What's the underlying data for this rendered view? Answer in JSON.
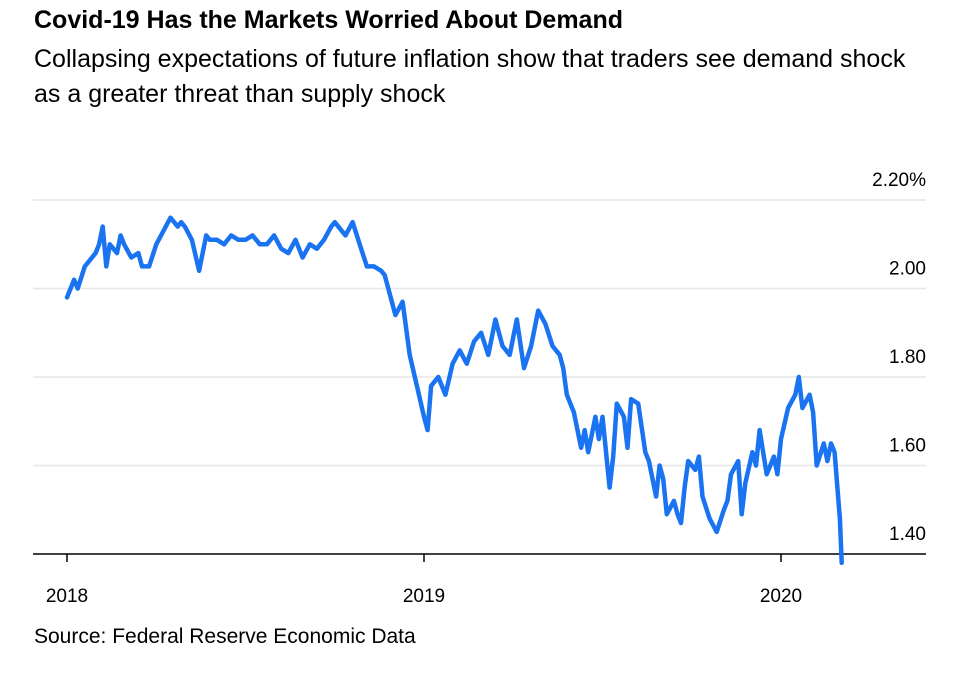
{
  "title": "Covid-19 Has the Markets Worried About Demand",
  "subtitle": "Collapsing expectations of future inflation show that traders see demand shock as a greater threat than supply shock",
  "source": "Source: Federal Reserve Economic Data",
  "colors": {
    "line": "#1a73f0",
    "grid": "#e6e6e6",
    "axis": "#000000"
  },
  "chart_data": {
    "type": "line",
    "title": "Covid-19 Has the Markets Worried About Demand",
    "subtitle": "Collapsing expectations of future inflation show that traders see demand shock as a greater threat than supply shock",
    "xlabel": "",
    "ylabel": "",
    "ylim": [
      1.38,
      2.2
    ],
    "xlim": [
      2017.9,
      2020.4
    ],
    "grid": true,
    "y_ticks": [
      {
        "value": 2.2,
        "label": "2.20%"
      },
      {
        "value": 2.0,
        "label": "2.00"
      },
      {
        "value": 1.8,
        "label": "1.80"
      },
      {
        "value": 1.6,
        "label": "1.60"
      },
      {
        "value": 1.4,
        "label": "1.40"
      }
    ],
    "x_ticks": [
      {
        "value": 2018,
        "label": "2018"
      },
      {
        "value": 2019,
        "label": "2019"
      },
      {
        "value": 2020,
        "label": "2020"
      }
    ],
    "series": [
      {
        "x": [
          2018.0,
          2018.01,
          2018.02,
          2018.03,
          2018.05,
          2018.06,
          2018.08,
          2018.09,
          2018.1,
          2018.11,
          2018.12,
          2018.14,
          2018.15,
          2018.16,
          2018.18,
          2018.2,
          2018.21,
          2018.23,
          2018.25,
          2018.27,
          2018.29,
          2018.3,
          2018.31,
          2018.32,
          2018.33,
          2018.35,
          2018.37,
          2018.39,
          2018.4,
          2018.42,
          2018.44,
          2018.46,
          2018.48,
          2018.5,
          2018.52,
          2018.54,
          2018.56,
          2018.58,
          2018.6,
          2018.62,
          2018.64,
          2018.66,
          2018.68,
          2018.7,
          2018.72,
          2018.74,
          2018.75,
          2018.76,
          2018.78,
          2018.8,
          2018.82,
          2018.84,
          2018.86,
          2018.88,
          2018.89,
          2018.9,
          2018.92,
          2018.94,
          2018.96,
          2018.98,
          2019.0,
          2019.01,
          2019.02,
          2019.04,
          2019.06,
          2019.08,
          2019.1,
          2019.12,
          2019.14,
          2019.16,
          2019.18,
          2019.2,
          2019.22,
          2019.24,
          2019.26,
          2019.28,
          2019.3,
          2019.32,
          2019.34,
          2019.36,
          2019.38,
          2019.39,
          2019.4,
          2019.42,
          2019.44,
          2019.45,
          2019.46,
          2019.48,
          2019.49,
          2019.5,
          2019.52,
          2019.53,
          2019.54,
          2019.56,
          2019.57,
          2019.58,
          2019.6,
          2019.62,
          2019.63,
          2019.64,
          2019.65,
          2019.66,
          2019.67,
          2019.68,
          2019.7,
          2019.71,
          2019.72,
          2019.73,
          2019.74,
          2019.76,
          2019.77,
          2019.78,
          2019.8,
          2019.82,
          2019.84,
          2019.85,
          2019.86,
          2019.88,
          2019.89,
          2019.9,
          2019.92,
          2019.93,
          2019.94,
          2019.96,
          2019.98,
          2019.99,
          2020.0,
          2020.02,
          2020.04,
          2020.05,
          2020.06,
          2020.08,
          2020.09,
          2020.1,
          2020.12,
          2020.13,
          2020.14,
          2020.15,
          2020.16,
          2020.165,
          2020.17
        ],
        "y": [
          1.98,
          2.0,
          2.02,
          2.0,
          2.05,
          2.06,
          2.08,
          2.1,
          2.14,
          2.05,
          2.1,
          2.08,
          2.12,
          2.1,
          2.07,
          2.08,
          2.05,
          2.05,
          2.1,
          2.13,
          2.16,
          2.15,
          2.14,
          2.15,
          2.14,
          2.11,
          2.04,
          2.12,
          2.11,
          2.11,
          2.1,
          2.12,
          2.11,
          2.11,
          2.12,
          2.1,
          2.1,
          2.12,
          2.09,
          2.08,
          2.11,
          2.07,
          2.1,
          2.09,
          2.11,
          2.14,
          2.15,
          2.14,
          2.12,
          2.15,
          2.1,
          2.05,
          2.05,
          2.04,
          2.03,
          2.0,
          1.94,
          1.97,
          1.85,
          1.78,
          1.71,
          1.68,
          1.78,
          1.8,
          1.76,
          1.83,
          1.86,
          1.83,
          1.88,
          1.9,
          1.85,
          1.93,
          1.87,
          1.85,
          1.93,
          1.82,
          1.87,
          1.95,
          1.92,
          1.87,
          1.85,
          1.82,
          1.76,
          1.72,
          1.64,
          1.68,
          1.63,
          1.71,
          1.66,
          1.71,
          1.55,
          1.62,
          1.74,
          1.71,
          1.64,
          1.75,
          1.74,
          1.63,
          1.61,
          1.57,
          1.53,
          1.6,
          1.57,
          1.49,
          1.52,
          1.49,
          1.47,
          1.55,
          1.61,
          1.59,
          1.62,
          1.53,
          1.48,
          1.45,
          1.5,
          1.52,
          1.58,
          1.61,
          1.49,
          1.56,
          1.63,
          1.6,
          1.68,
          1.58,
          1.62,
          1.58,
          1.66,
          1.73,
          1.76,
          1.8,
          1.73,
          1.76,
          1.72,
          1.6,
          1.65,
          1.61,
          1.65,
          1.63,
          1.53,
          1.48,
          1.38
        ],
        "color": "#1a73f0"
      }
    ]
  }
}
